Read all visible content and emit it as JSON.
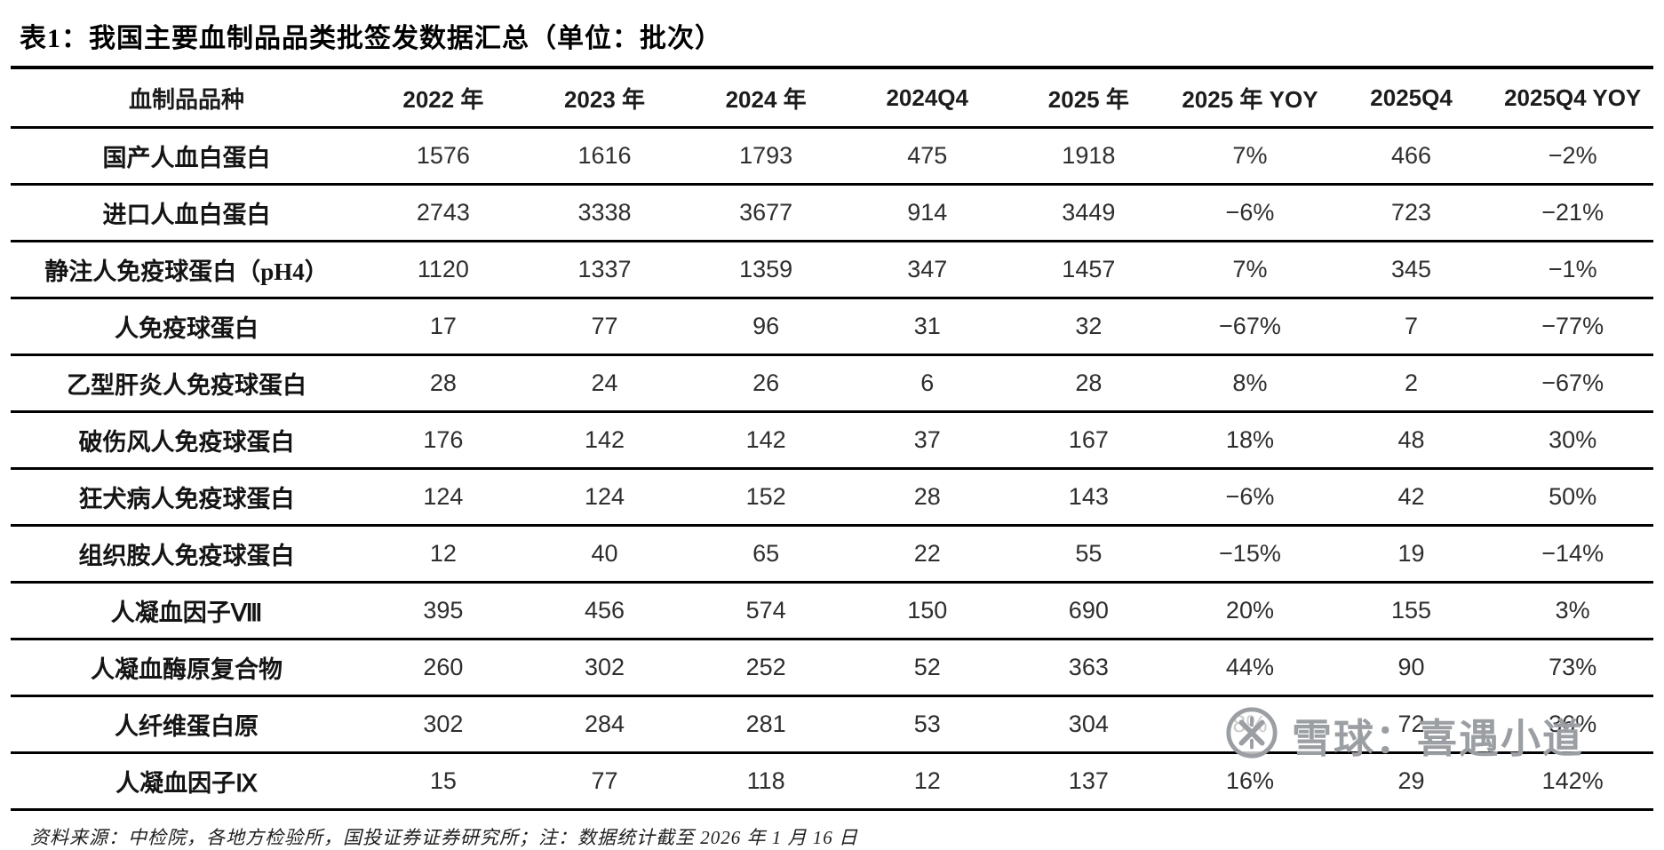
{
  "page": {
    "title": "表1：我国主要血制品品类批签发数据汇总（单位：批次）",
    "source_note": "资料来源：中检院，各地方检验所，国投证券证券研究所；注：数据统计截至 2026 年 1 月 16 日"
  },
  "table": {
    "columns": [
      "血制品品种",
      "2022 年",
      "2023 年",
      "2024 年",
      "2024Q4",
      "2025 年",
      "2025 年 YOY",
      "2025Q4",
      "2025Q4 YOY"
    ],
    "rows": [
      {
        "label": "国产人血白蛋白",
        "values": [
          "1576",
          "1616",
          "1793",
          "475",
          "1918",
          "7%",
          "466",
          "−2%"
        ]
      },
      {
        "label": "进口人血白蛋白",
        "values": [
          "2743",
          "3338",
          "3677",
          "914",
          "3449",
          "−6%",
          "723",
          "−21%"
        ]
      },
      {
        "label": "静注人免疫球蛋白（pH4）",
        "values": [
          "1120",
          "1337",
          "1359",
          "347",
          "1457",
          "7%",
          "345",
          "−1%"
        ]
      },
      {
        "label": "人免疫球蛋白",
        "values": [
          "17",
          "77",
          "96",
          "31",
          "32",
          "−67%",
          "7",
          "−77%"
        ]
      },
      {
        "label": "乙型肝炎人免疫球蛋白",
        "values": [
          "28",
          "24",
          "26",
          "6",
          "28",
          "8%",
          "2",
          "−67%"
        ]
      },
      {
        "label": "破伤风人免疫球蛋白",
        "values": [
          "176",
          "142",
          "142",
          "37",
          "167",
          "18%",
          "48",
          "30%"
        ]
      },
      {
        "label": "狂犬病人免疫球蛋白",
        "values": [
          "124",
          "124",
          "152",
          "28",
          "143",
          "−6%",
          "42",
          "50%"
        ]
      },
      {
        "label": "组织胺人免疫球蛋白",
        "values": [
          "12",
          "40",
          "65",
          "22",
          "55",
          "−15%",
          "19",
          "−14%"
        ]
      },
      {
        "label": "人凝血因子Ⅷ",
        "values": [
          "395",
          "456",
          "574",
          "150",
          "690",
          "20%",
          "155",
          "3%"
        ]
      },
      {
        "label": "人凝血酶原复合物",
        "values": [
          "260",
          "302",
          "252",
          "52",
          "363",
          "44%",
          "90",
          "73%"
        ]
      },
      {
        "label": "人纤维蛋白原",
        "values": [
          "302",
          "284",
          "281",
          "53",
          "304",
          "8%",
          "72",
          "36%"
        ]
      },
      {
        "label": "人凝血因子Ⅸ",
        "values": [
          "15",
          "77",
          "118",
          "12",
          "137",
          "16%",
          "29",
          "142%"
        ]
      }
    ]
  },
  "watermark": {
    "text": "雪球：喜遇小道",
    "logo": "xueqiu-logo",
    "color": "#9b9ea2"
  }
}
